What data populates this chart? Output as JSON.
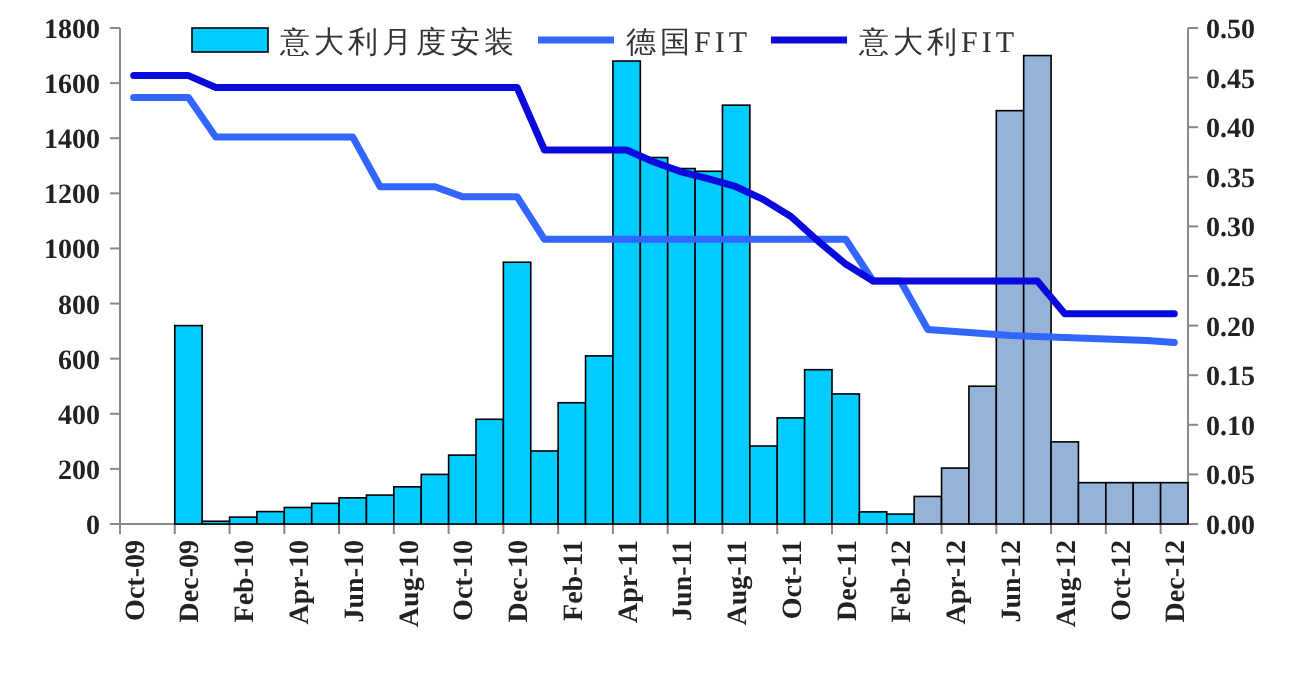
{
  "chart_data": {
    "type": "bar",
    "categories": [
      "Oct-09",
      null,
      "Dec-09",
      null,
      "Feb-10",
      null,
      "Apr-10",
      null,
      "Jun-10",
      null,
      "Aug-10",
      null,
      "Oct-10",
      null,
      "Dec-10",
      null,
      "Feb-11",
      null,
      "Apr-11",
      null,
      "Jun-11",
      null,
      "Aug-11",
      null,
      "Oct-11",
      null,
      "Dec-11",
      null,
      "Feb-12",
      null,
      "Apr-12",
      null,
      "Jun-12",
      null,
      "Aug-12",
      null,
      "Oct-12",
      null,
      "Dec-12"
    ],
    "series": [
      {
        "name": "意大利月度安装",
        "color": "#00ccff",
        "colors": [
          null,
          null,
          "#00ccff",
          "#00ccff",
          "#00ccff",
          "#00ccff",
          "#00ccff",
          "#00ccff",
          "#00ccff",
          "#00ccff",
          "#00ccff",
          "#00ccff",
          "#00ccff",
          "#00ccff",
          "#00ccff",
          "#00ccff",
          "#00ccff",
          "#00ccff",
          "#00ccff",
          "#00ccff",
          "#00ccff",
          "#00ccff",
          "#00ccff",
          "#00ccff",
          "#00ccff",
          "#00ccff",
          "#00ccff",
          "#00ccff",
          "#00ccff",
          "#95b3d7",
          "#95b3d7",
          "#95b3d7",
          "#95b3d7",
          "#95b3d7",
          "#95b3d7",
          "#95b3d7",
          "#95b3d7",
          "#95b3d7",
          "#95b3d7"
        ],
        "values": [
          null,
          null,
          720,
          10,
          25,
          45,
          60,
          75,
          95,
          105,
          135,
          180,
          250,
          380,
          950,
          265,
          440,
          610,
          1680,
          1330,
          1290,
          1280,
          1520,
          283,
          385,
          560,
          472,
          44,
          36,
          100,
          203,
          500,
          1500,
          1700,
          298,
          150,
          150,
          150,
          150
        ]
      },
      {
        "name": "德国FIT",
        "type": "line",
        "axis": "y2",
        "color": "#3366ff",
        "values": [
          0.43,
          0.43,
          0.43,
          0.39,
          0.39,
          0.39,
          0.39,
          0.39,
          0.39,
          0.34,
          0.34,
          0.34,
          0.33,
          0.33,
          0.33,
          0.287,
          0.287,
          0.287,
          0.287,
          0.287,
          0.287,
          0.287,
          0.287,
          0.287,
          0.287,
          0.287,
          0.287,
          0.245,
          0.245,
          0.196,
          0.194,
          0.192,
          0.19,
          0.189,
          0.188,
          0.187,
          0.186,
          0.185,
          0.183
        ]
      },
      {
        "name": "意大利FIT",
        "type": "line",
        "axis": "y2",
        "color": "#0a0add",
        "values": [
          0.452,
          0.452,
          0.452,
          0.44,
          0.44,
          0.44,
          0.44,
          0.44,
          0.44,
          0.44,
          0.44,
          0.44,
          0.44,
          0.44,
          0.44,
          0.377,
          0.377,
          0.377,
          0.377,
          0.365,
          0.355,
          0.348,
          0.34,
          0.327,
          0.31,
          0.285,
          0.262,
          0.245,
          0.245,
          0.245,
          0.245,
          0.245,
          0.245,
          0.245,
          0.212,
          0.212,
          0.212,
          0.212,
          0.212
        ]
      }
    ],
    "ylim": [
      0,
      1800
    ],
    "yticks": [
      0,
      200,
      400,
      600,
      800,
      1000,
      1200,
      1400,
      1600,
      1800
    ],
    "y2lim": [
      0,
      0.5
    ],
    "y2ticks": [
      {
        "value": 0,
        "label": "0.00"
      },
      {
        "value": 0.05,
        "label": "0.05"
      },
      {
        "value": 0.1,
        "label": "0.10"
      },
      {
        "value": 0.15,
        "label": "0.15"
      },
      {
        "value": 0.2,
        "label": "0.20"
      },
      {
        "value": 0.25,
        "label": "0.25"
      },
      {
        "value": 0.3,
        "label": "0.30"
      },
      {
        "value": 0.35,
        "label": "0.35"
      },
      {
        "value": 0.4,
        "label": "0.40"
      },
      {
        "value": 0.45,
        "label": "0.45"
      },
      {
        "value": 0.5,
        "label": "0.50"
      }
    ],
    "legend": "top"
  }
}
